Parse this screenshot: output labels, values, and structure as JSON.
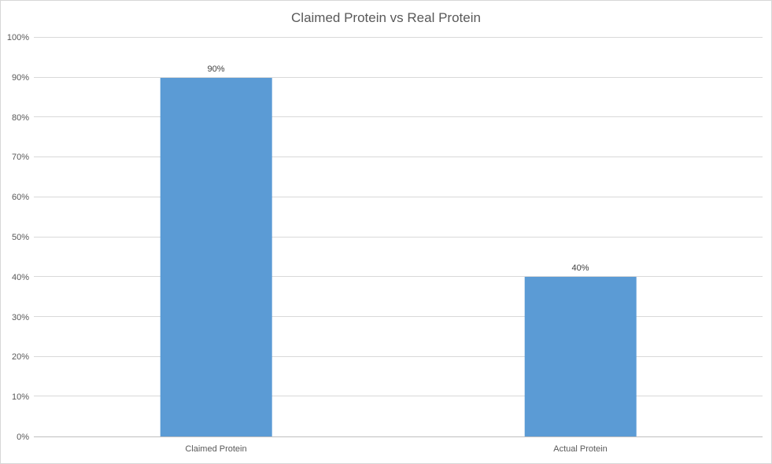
{
  "chart_data": {
    "type": "bar",
    "title": "Claimed Protein vs Real Protein",
    "categories": [
      "Claimed Protein",
      "Actual Protein"
    ],
    "values": [
      90,
      40
    ],
    "data_labels": [
      "90%",
      "40%"
    ],
    "ytick_labels": [
      "0%",
      "10%",
      "20%",
      "30%",
      "40%",
      "50%",
      "60%",
      "70%",
      "80%",
      "90%",
      "100%"
    ],
    "ytick_values": [
      0,
      10,
      20,
      30,
      40,
      50,
      60,
      70,
      80,
      90,
      100
    ],
    "ylim": [
      0,
      100
    ],
    "xlabel": "",
    "ylabel": "",
    "grid": true,
    "legend": "none",
    "bar_color": "#5b9bd5",
    "gridline_color": "#d9d9d9",
    "axis_line_color": "#bfbfbf",
    "title_color": "#595959",
    "label_color": "#595959"
  }
}
